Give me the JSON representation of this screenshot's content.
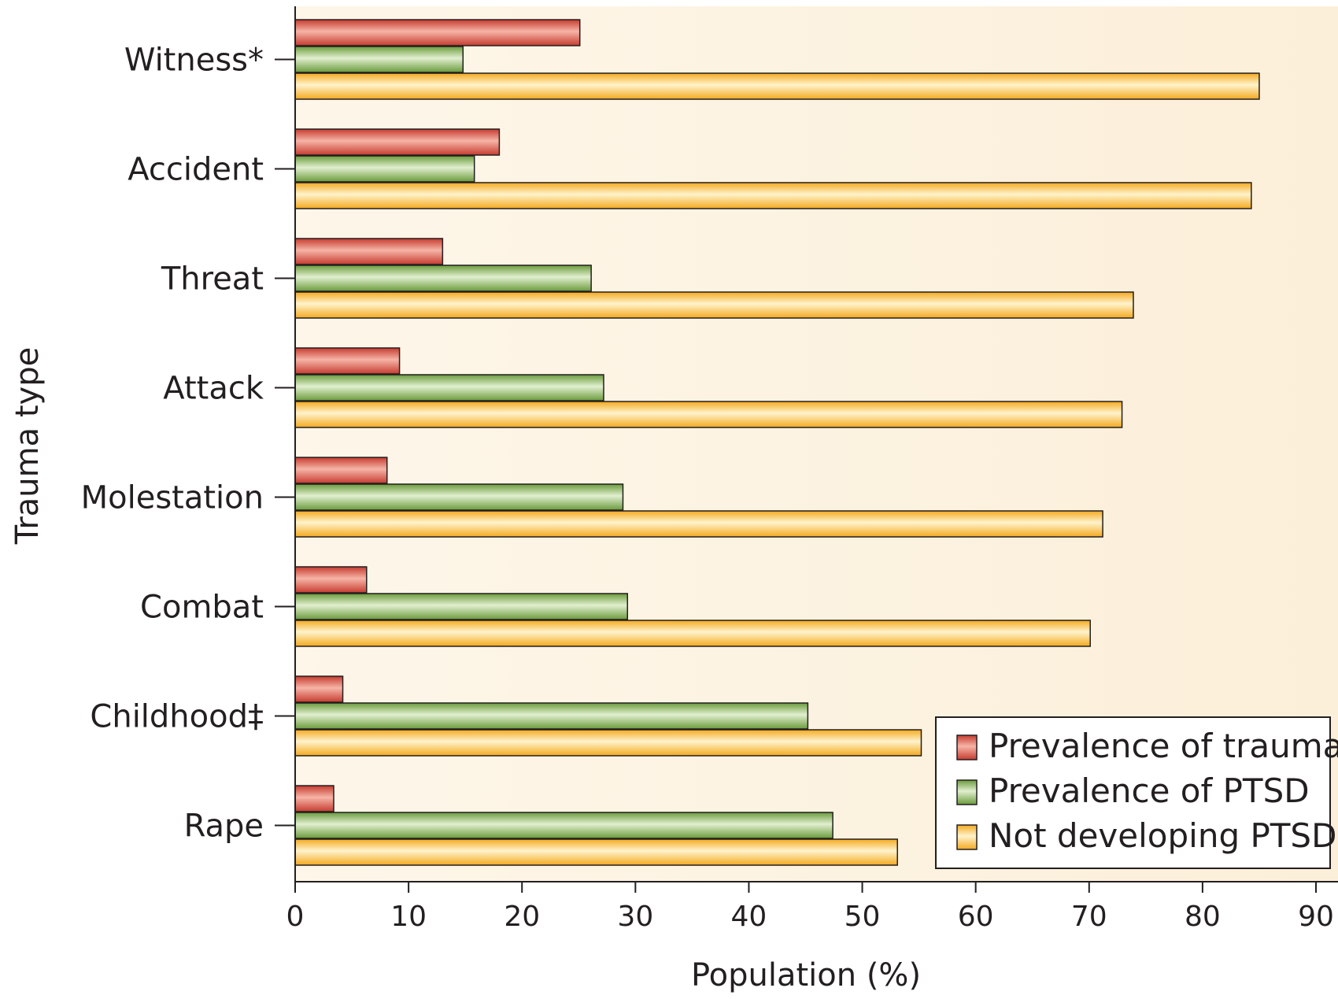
{
  "chart_data": {
    "type": "bar",
    "orientation": "horizontal",
    "categories": [
      "Witness*",
      "Accident",
      "Threat",
      "Attack",
      "Molestation",
      "Combat",
      "Childhood‡",
      "Rape"
    ],
    "series": [
      {
        "name": "Prevalence of trauma",
        "color": "#d9463a",
        "values": [
          25.1,
          18,
          13,
          9.2,
          8.1,
          6.3,
          4.2,
          3.4
        ]
      },
      {
        "name": "Prevalence of PTSD",
        "color": "#82b04f",
        "values": [
          14.8,
          15.8,
          26.1,
          27.2,
          28.9,
          29.3,
          45.2,
          47.4
        ]
      },
      {
        "name": "Not developing PTSD",
        "color": "#f7b733",
        "values": [
          85,
          84.3,
          73.9,
          72.9,
          71.2,
          70.1,
          55.2,
          53.1
        ]
      }
    ],
    "xlabel": "Population (%)",
    "ylabel": "Trauma type",
    "xlim": [
      0,
      90
    ],
    "xticks": [
      0,
      10,
      20,
      30,
      40,
      50,
      60,
      70,
      80,
      90
    ],
    "grid": false,
    "legend_position": "bottom-right",
    "background": "#fdf3e0"
  }
}
